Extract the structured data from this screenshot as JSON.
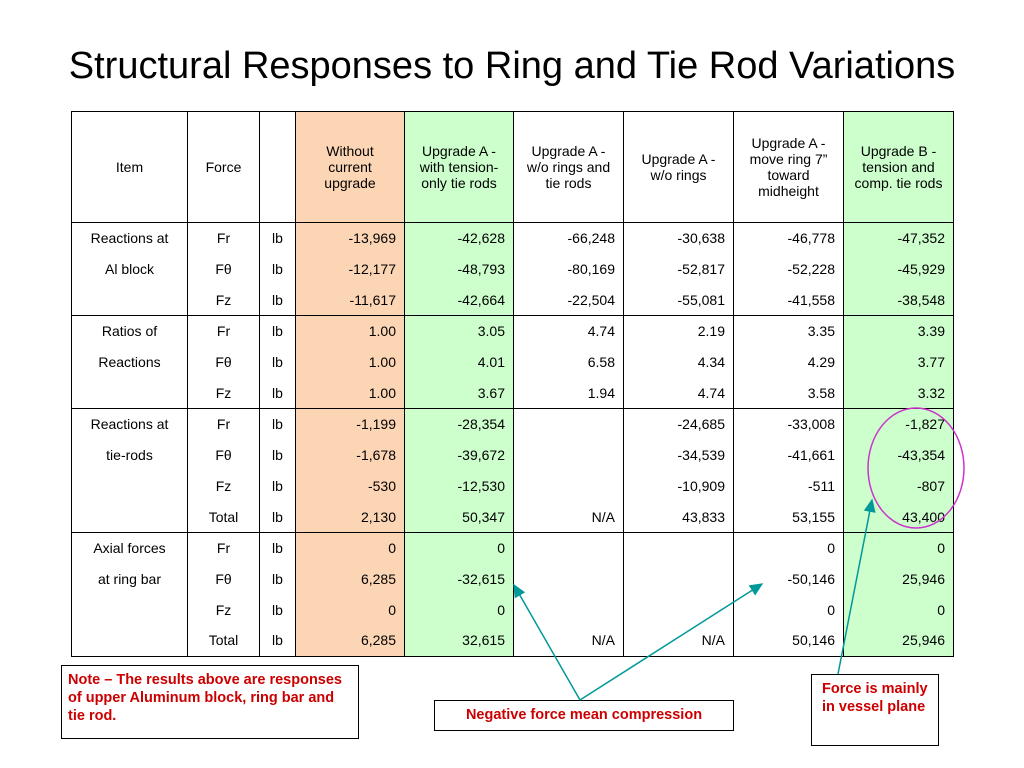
{
  "title": "Structural Responses to Ring and Tie Rod Variations",
  "table": {
    "headers": {
      "item": "Item",
      "force": "Force",
      "unit": "",
      "without": "Without current upgrade",
      "a_tension": "Upgrade A - with tension-only tie rods",
      "a_norings_notie": "Upgrade A - w/o rings and tie rods",
      "a_norings": "Upgrade A - w/o rings",
      "a_moverings": "Upgrade A - move ring 7” toward midheight",
      "b": "Upgrade B - tension and comp. tie rods"
    },
    "groups": [
      {
        "label_line1": "Reactions at",
        "label_line2": "Al block",
        "rows": [
          {
            "force": "Fr",
            "unit": "lb",
            "vals": [
              "-13,969",
              "-42,628",
              "-66,248",
              "-30,638",
              "-46,778",
              "-47,352"
            ]
          },
          {
            "force": "Fθ",
            "unit": "lb",
            "vals": [
              "-12,177",
              "-48,793",
              "-80,169",
              "-52,817",
              "-52,228",
              "-45,929"
            ]
          },
          {
            "force": "Fz",
            "unit": "lb",
            "vals": [
              "-11,617",
              "-42,664",
              "-22,504",
              "-55,081",
              "-41,558",
              "-38,548"
            ]
          }
        ]
      },
      {
        "label_line1": "Ratios of",
        "label_line2": "Reactions",
        "rows": [
          {
            "force": "Fr",
            "unit": "lb",
            "vals": [
              "1.00",
              "3.05",
              "4.74",
              "2.19",
              "3.35",
              "3.39"
            ]
          },
          {
            "force": "Fθ",
            "unit": "lb",
            "vals": [
              "1.00",
              "4.01",
              "6.58",
              "4.34",
              "4.29",
              "3.77"
            ]
          },
          {
            "force": "Fz",
            "unit": "lb",
            "vals": [
              "1.00",
              "3.67",
              "1.94",
              "4.74",
              "3.58",
              "3.32"
            ]
          }
        ]
      },
      {
        "label_line1": "Reactions at",
        "label_line2": "tie-rods",
        "rows": [
          {
            "force": "Fr",
            "unit": "lb",
            "vals": [
              "-1,199",
              "-28,354",
              "",
              "-24,685",
              "-33,008",
              "-1,827"
            ]
          },
          {
            "force": "Fθ",
            "unit": "lb",
            "vals": [
              "-1,678",
              "-39,672",
              "",
              "-34,539",
              "-41,661",
              "-43,354"
            ]
          },
          {
            "force": "Fz",
            "unit": "lb",
            "vals": [
              "-530",
              "-12,530",
              "",
              "-10,909",
              "-511",
              "-807"
            ]
          },
          {
            "force": "Total",
            "unit": "lb",
            "vals": [
              "2,130",
              "50,347",
              "N/A",
              "43,833",
              "53,155",
              "43,400"
            ]
          }
        ]
      },
      {
        "label_line1": "Axial forces",
        "label_line2": "at ring bar",
        "rows": [
          {
            "force": "Fr",
            "unit": "lb",
            "vals": [
              "0",
              "0",
              "",
              "",
              "0",
              "0"
            ]
          },
          {
            "force": "Fθ",
            "unit": "lb",
            "vals": [
              "6,285",
              "-32,615",
              "",
              "",
              "-50,146",
              "25,946"
            ]
          },
          {
            "force": "Fz",
            "unit": "lb",
            "vals": [
              "0",
              "0",
              "",
              "",
              "0",
              "0"
            ]
          },
          {
            "force": "Total",
            "unit": "lb",
            "vals": [
              "6,285",
              "32,615",
              "N/A",
              "N/A",
              "50,146",
              "25,946"
            ]
          }
        ]
      }
    ]
  },
  "notes": {
    "left": "Note – The results above are responses of upper Aluminum block, ring bar and tie rod.",
    "middle": "Negative force mean compression",
    "right": "Force is mainly in vessel plane"
  },
  "colors": {
    "orange_column": "#fcd5b4",
    "green_column": "#ccffcc",
    "note_text": "#cc0000",
    "arrow": "#009999",
    "circle": "#cc33cc"
  }
}
